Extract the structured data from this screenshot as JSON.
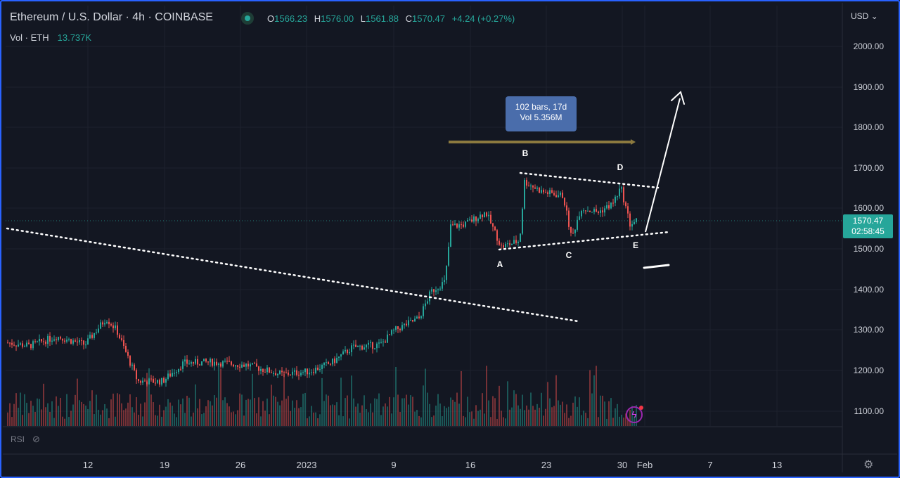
{
  "header": {
    "symbol_title": "Ethereum / U.S. Dollar · 4h · COINBASE",
    "ohlc": [
      {
        "k": "O",
        "v": "1566.23"
      },
      {
        "k": "H",
        "v": "1576.00"
      },
      {
        "k": "L",
        "v": "1561.88"
      },
      {
        "k": "C",
        "v": "1570.47"
      }
    ],
    "change": "+4.24 (+0.27%)",
    "volume_label": "Vol · ETH",
    "volume_value": "13.737K"
  },
  "currency_selector": "USD",
  "price_tag": {
    "price": "1570.47",
    "countdown": "02:58:45"
  },
  "measure_tooltip": {
    "line1": "102 bars, 17d",
    "line2": "Vol 5.356M"
  },
  "wave_labels": [
    "A",
    "B",
    "C",
    "D",
    "E"
  ],
  "rsi_label": "RSI",
  "colors": {
    "up": "#26a69a",
    "down": "#ef5350",
    "background": "#131722",
    "accent": "#2962ff"
  },
  "chart_data": {
    "type": "candlestick",
    "timeframe": "4h",
    "yaxis_ticks": [
      "2000.00",
      "1900.00",
      "1800.00",
      "1700.00",
      "1600.00",
      "1500.00",
      "1400.00",
      "1300.00",
      "1200.00",
      "1100.00"
    ],
    "ylim": [
      1060,
      2080
    ],
    "xaxis_ticks": [
      "12",
      "19",
      "26",
      "2023",
      "9",
      "16",
      "23",
      "30",
      "Feb",
      "7",
      "13"
    ],
    "last_price": 1570.47,
    "approx_path": [
      {
        "date": "Dec 6",
        "close": 1270
      },
      {
        "date": "Dec 10",
        "close": 1260
      },
      {
        "date": "Dec 13",
        "close": 1330
      },
      {
        "date": "Dec 16",
        "close": 1170
      },
      {
        "date": "Dec 20",
        "close": 1220
      },
      {
        "date": "Dec 28",
        "close": 1195
      },
      {
        "date": "Jan 4",
        "close": 1250
      },
      {
        "date": "Jan 8",
        "close": 1265
      },
      {
        "date": "Jan 11",
        "close": 1340
      },
      {
        "date": "Jan 13",
        "close": 1420
      },
      {
        "date": "Jan 14",
        "close": 1550
      },
      {
        "date": "Jan 17",
        "close": 1590
      },
      {
        "date": "Jan 18",
        "close": 1505
      },
      {
        "date": "Jan 20",
        "close": 1670
      },
      {
        "date": "Jan 24",
        "close": 1620
      },
      {
        "date": "Jan 25",
        "close": 1530
      },
      {
        "date": "Jan 26",
        "close": 1600
      },
      {
        "date": "Jan 29",
        "close": 1650
      },
      {
        "date": "Jan 30",
        "close": 1570
      }
    ]
  }
}
